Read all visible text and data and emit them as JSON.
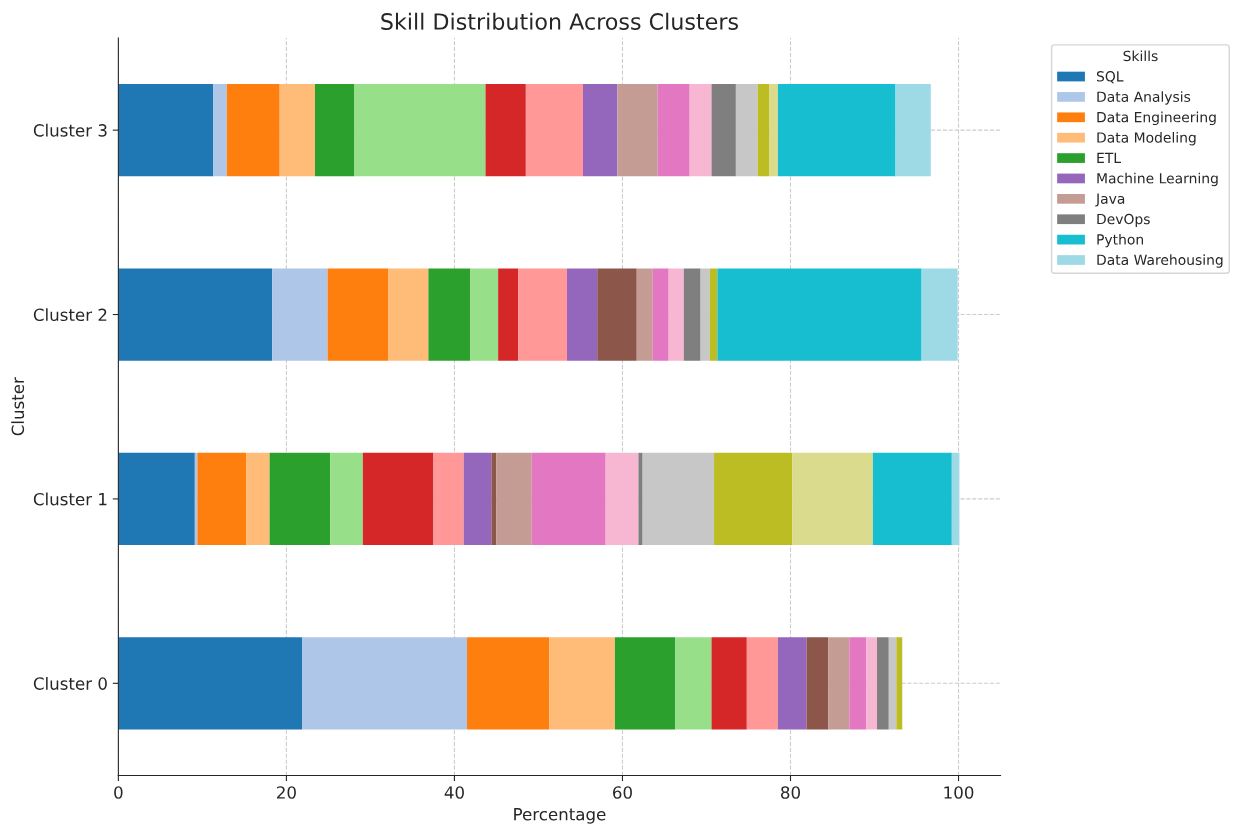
{
  "chart_data": {
    "type": "bar",
    "orientation": "horizontal",
    "stacked": true,
    "title": "Skill Distribution Across Clusters",
    "xlabel": "Percentage",
    "ylabel": "Cluster",
    "legend_title": "Skills",
    "legend": "top right",
    "grid": true,
    "categories": [
      "Cluster 3",
      "Cluster 2",
      "Cluster 1",
      "Cluster 0"
    ],
    "xlim": [
      0,
      105
    ],
    "xticks": [
      0,
      20,
      40,
      60,
      80,
      100
    ],
    "series": [
      {
        "name": "SQL",
        "color": "#1f77b4",
        "values": [
          11.3,
          18.3,
          9.1,
          21.9
        ]
      },
      {
        "name": "Data Analysis",
        "color": "#aec7e8",
        "values": [
          1.6,
          6.6,
          0.3,
          19.6
        ]
      },
      {
        "name": "Data Engineering",
        "color": "#ff7f0e",
        "values": [
          6.3,
          7.2,
          5.8,
          9.8
        ]
      },
      {
        "name": "Data Modeling",
        "color": "#ffbb78",
        "values": [
          4.2,
          4.8,
          2.8,
          7.8
        ]
      },
      {
        "name": "ETL",
        "color": "#2ca02c",
        "values": [
          4.7,
          5.0,
          7.2,
          7.2
        ]
      },
      {
        "color": "#98df8a",
        "values": [
          15.6,
          3.3,
          3.9,
          4.3
        ]
      },
      {
        "color": "#d62728",
        "values": [
          4.8,
          2.4,
          8.4,
          4.2
        ]
      },
      {
        "color": "#ff9896",
        "values": [
          6.8,
          5.8,
          3.6,
          3.7
        ]
      },
      {
        "name": "Machine Learning",
        "color": "#9467bd",
        "values": [
          4.1,
          3.6,
          3.3,
          3.4
        ]
      },
      {
        "color": "#8c564b",
        "values": [
          0,
          4.7,
          0.6,
          2.6
        ]
      },
      {
        "name": "Java",
        "color": "#c49c94",
        "values": [
          4.8,
          1.9,
          4.2,
          2.5
        ]
      },
      {
        "color": "#e377c2",
        "values": [
          3.8,
          1.9,
          8.8,
          2.0
        ]
      },
      {
        "color": "#f7b6d2",
        "values": [
          2.6,
          1.8,
          3.9,
          1.3
        ]
      },
      {
        "name": "DevOps",
        "color": "#7f7f7f",
        "values": [
          2.9,
          2.0,
          0.5,
          1.4
        ]
      },
      {
        "color": "#c7c7c7",
        "values": [
          2.6,
          1.1,
          8.5,
          0.9
        ]
      },
      {
        "color": "#bcbd22",
        "values": [
          1.4,
          0.9,
          9.3,
          0.7
        ]
      },
      {
        "color": "#dbdb8d",
        "values": [
          1.0,
          0,
          9.6,
          0
        ]
      },
      {
        "name": "Python",
        "color": "#17becf",
        "values": [
          14.0,
          24.3,
          9.4,
          0
        ]
      },
      {
        "name": "Data Warehousing",
        "color": "#9edae5",
        "values": [
          4.2,
          4.3,
          0.9,
          0
        ]
      }
    ]
  }
}
